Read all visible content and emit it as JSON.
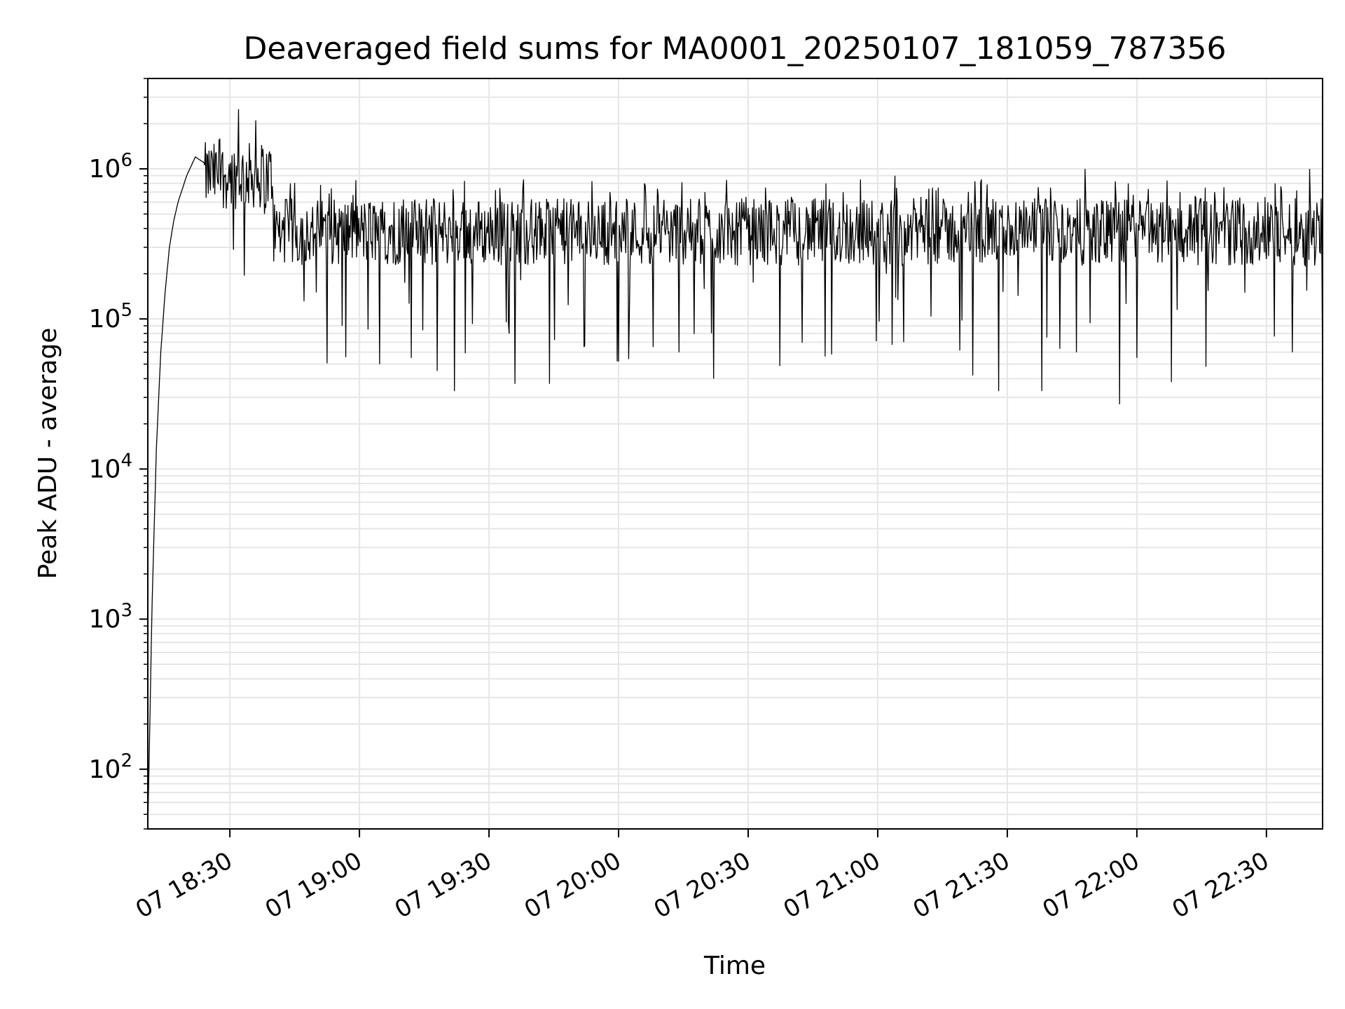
{
  "chart_data": {
    "type": "line",
    "title": "Deaveraged field sums for MA0001_20250107_181059_787356",
    "xlabel": "Time",
    "ylabel": "Peak ADU - average",
    "x_axis": {
      "kind": "time",
      "range": [
        "18:11",
        "22:43"
      ],
      "tick_values": [
        "18:30",
        "19:00",
        "19:30",
        "20:00",
        "20:30",
        "21:00",
        "21:30",
        "22:00",
        "22:30"
      ],
      "tick_labels": [
        "07 18:30",
        "07 19:00",
        "07 19:30",
        "07 20:00",
        "07 20:30",
        "07 21:00",
        "07 21:30",
        "07 22:00",
        "07 22:30"
      ]
    },
    "y_axis": {
      "scale": "log",
      "range": [
        40,
        4000000
      ],
      "tick_values": [
        100,
        1000,
        10000,
        100000,
        1000000
      ],
      "tick_labels": [
        {
          "base": "10",
          "exp": "2"
        },
        {
          "base": "10",
          "exp": "3"
        },
        {
          "base": "10",
          "exp": "4"
        },
        {
          "base": "10",
          "exp": "5"
        },
        {
          "base": "10",
          "exp": "6"
        }
      ]
    },
    "grid": true,
    "line_color": "#000000",
    "grid_color": "#e6e6e6",
    "series": [
      {
        "x": [
          "18:11",
          "18:12",
          "18:13",
          "18:14",
          "18:15",
          "18:16",
          "18:17",
          "18:18",
          "18:20",
          "18:22",
          "18:24",
          "18:26",
          "18:28",
          "18:30",
          "18:32",
          "18:34",
          "18:36",
          "18:38",
          "18:40",
          "18:42",
          "18:44",
          "18:46",
          "18:48",
          "18:50",
          "18:52",
          "18:54",
          "18:56",
          "18:58",
          "19:00",
          "19:02",
          "19:04",
          "19:06",
          "19:08",
          "19:10",
          "19:12",
          "19:14",
          "19:16",
          "19:18",
          "19:20",
          "19:22",
          "19:24",
          "19:26",
          "19:28",
          "19:30",
          "19:32",
          "19:34",
          "19:36",
          "19:38",
          "19:40",
          "19:42",
          "19:44",
          "19:46",
          "19:48",
          "19:50",
          "19:52",
          "19:54",
          "19:56",
          "19:58",
          "20:00",
          "20:02",
          "20:04",
          "20:06",
          "20:08",
          "20:10",
          "20:12",
          "20:14",
          "20:16",
          "20:18",
          "20:20",
          "20:22",
          "20:24",
          "20:26",
          "20:28",
          "20:30",
          "20:32",
          "20:34",
          "20:36",
          "20:38",
          "20:40",
          "20:42",
          "20:44",
          "20:46",
          "20:48",
          "20:50",
          "20:52",
          "20:54",
          "20:56",
          "20:58",
          "21:00",
          "21:02",
          "21:04",
          "21:06",
          "21:08",
          "21:10",
          "21:12",
          "21:14",
          "21:16",
          "21:18",
          "21:20",
          "21:22",
          "21:24",
          "21:26",
          "21:28",
          "21:30",
          "21:32",
          "21:34",
          "21:36",
          "21:38",
          "21:40",
          "21:42",
          "21:44",
          "21:46",
          "21:48",
          "21:50",
          "21:52",
          "21:54",
          "21:56",
          "21:58",
          "22:00",
          "22:02",
          "22:04",
          "22:06",
          "22:08",
          "22:10",
          "22:12",
          "22:14",
          "22:16",
          "22:18",
          "22:20",
          "22:22",
          "22:24",
          "22:26",
          "22:28",
          "22:30",
          "22:32",
          "22:34",
          "22:36",
          "22:38",
          "22:40",
          "22:42",
          "22:43"
        ],
        "y": [
          40,
          1300,
          14000,
          60000,
          150000,
          300000,
          450000,
          600000,
          900000,
          1200000,
          1100000,
          1150000,
          1000000,
          800000,
          2500000,
          700000,
          2100000,
          500000,
          600000,
          350000,
          800000,
          250000,
          400000,
          150000,
          450000,
          300000,
          90000,
          500000,
          350000,
          85000,
          400000,
          250000,
          600000,
          300000,
          55000,
          500000,
          400000,
          45000,
          350000,
          33000,
          600000,
          250000,
          450000,
          300000,
          550000,
          95000,
          37000,
          850000,
          300000,
          550000,
          37000,
          400000,
          600000,
          350000,
          65000,
          500000,
          300000,
          700000,
          52000,
          600000,
          350000,
          800000,
          65000,
          450000,
          300000,
          60000,
          550000,
          400000,
          700000,
          40000,
          450000,
          300000,
          600000,
          550000,
          250000,
          750000,
          400000,
          300000,
          650000,
          350000,
          500000,
          450000,
          800000,
          300000,
          700000,
          400000,
          850000,
          550000,
          350000,
          200000,
          900000,
          70000,
          400000,
          650000,
          300000,
          750000,
          500000,
          300000,
          400000,
          42000,
          850000,
          500000,
          33000,
          400000,
          600000,
          300000,
          500000,
          33000,
          750000,
          400000,
          550000,
          60000,
          1000000,
          350000,
          500000,
          600000,
          27000,
          800000,
          55000,
          500000,
          400000,
          600000,
          38000,
          700000,
          400000,
          500000,
          48000,
          700000,
          450000,
          550000,
          300000,
          450000,
          600000,
          250000,
          800000,
          350000,
          60000,
          500000,
          1000000,
          450000,
          40000
        ]
      }
    ]
  }
}
